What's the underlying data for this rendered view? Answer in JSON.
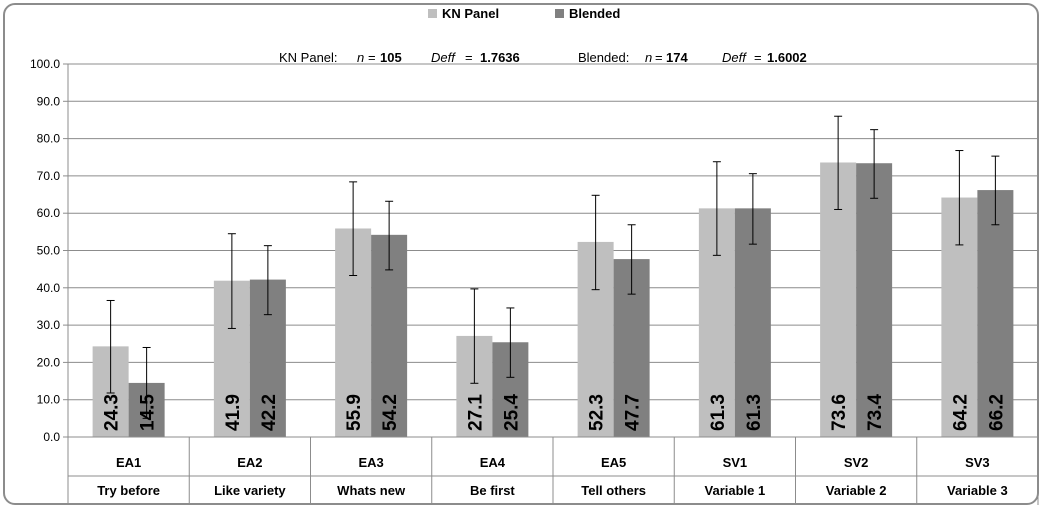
{
  "chart_data": {
    "type": "bar",
    "legend_position": "top",
    "grid": true,
    "ylim": [
      0,
      100
    ],
    "yticks": [
      0,
      10,
      20,
      30,
      40,
      50,
      60,
      70,
      80,
      90,
      100
    ],
    "ytick_labels": [
      "0.0",
      "10.0",
      "20.0",
      "30.0",
      "40.0",
      "50.0",
      "60.0",
      "70.0",
      "80.0",
      "90.0",
      "100.0"
    ],
    "categories": [
      {
        "code": "EA1",
        "label": "Try before"
      },
      {
        "code": "EA2",
        "label": "Like variety"
      },
      {
        "code": "EA3",
        "label": "Whats new"
      },
      {
        "code": "EA4",
        "label": "Be first"
      },
      {
        "code": "EA5",
        "label": "Tell others"
      },
      {
        "code": "SV1",
        "label": "Variable 1"
      },
      {
        "code": "SV2",
        "label": "Variable 2"
      },
      {
        "code": "SV3",
        "label": "Variable 3"
      }
    ],
    "series": [
      {
        "name": "KN Panel",
        "color": "#bfbfbf",
        "values": [
          24.3,
          41.9,
          55.9,
          27.1,
          52.3,
          61.3,
          73.6,
          64.2
        ],
        "value_labels": [
          "24.3",
          "41.9",
          "55.9",
          "27.1",
          "52.3",
          "61.3",
          "73.6",
          "64.2"
        ],
        "error_low": [
          11.8,
          29.1,
          43.3,
          14.4,
          39.5,
          48.7,
          61.0,
          51.5
        ],
        "error_high": [
          36.6,
          54.5,
          68.4,
          39.7,
          64.8,
          73.8,
          86.0,
          76.8
        ]
      },
      {
        "name": "Blended",
        "color": "#808080",
        "values": [
          14.5,
          42.2,
          54.2,
          25.4,
          47.7,
          61.3,
          73.4,
          66.2
        ],
        "value_labels": [
          "14.5",
          "42.2",
          "54.2",
          "25.4",
          "47.7",
          "61.3",
          "73.4",
          "66.2"
        ],
        "error_low": [
          5.0,
          32.8,
          44.8,
          16.0,
          38.3,
          51.7,
          64.0,
          56.9
        ],
        "error_high": [
          24.0,
          51.3,
          63.2,
          34.6,
          56.9,
          70.6,
          82.4,
          75.3
        ]
      }
    ],
    "annotation": {
      "kn_prefix": "KN Panel:",
      "n_symbol": "n",
      "eq": "=",
      "kn_n": "105",
      "deff_symbol": "Deff",
      "kn_deff": "1.7636",
      "bl_prefix": "Blended:",
      "bl_n": "174",
      "bl_deff": "1.6002"
    }
  }
}
